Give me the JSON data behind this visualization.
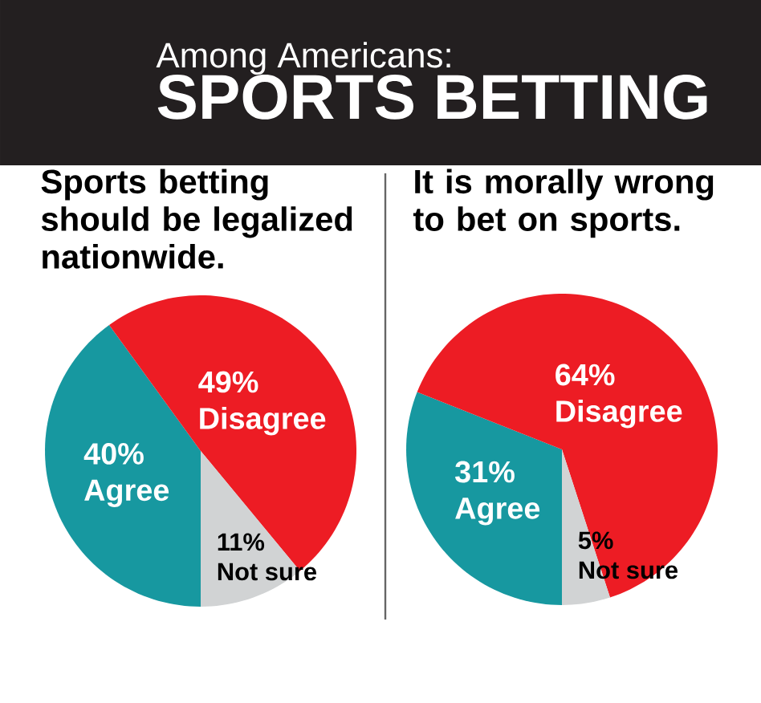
{
  "chart_data": [
    {
      "type": "other",
      "title": "SPORTS BETTING",
      "subtitle": "Among Americans:"
    },
    {
      "type": "pie",
      "title": "Sports betting should be legalized nationwide.",
      "categories": [
        "Agree",
        "Disagree",
        "Not sure"
      ],
      "values": [
        40,
        49,
        11
      ],
      "colors": [
        "#1798a0",
        "#ed1c24",
        "#d1d3d4"
      ],
      "value_labels": [
        "40%",
        "49%",
        "11%"
      ]
    },
    {
      "type": "pie",
      "title": "It is morally wrong to bet on sports.",
      "categories": [
        "Agree",
        "Disagree",
        "Not sure"
      ],
      "values": [
        31,
        64,
        5
      ],
      "colors": [
        "#1798a0",
        "#ed1c24",
        "#d1d3d4"
      ],
      "value_labels": [
        "31%",
        "64%",
        "5%"
      ]
    }
  ]
}
